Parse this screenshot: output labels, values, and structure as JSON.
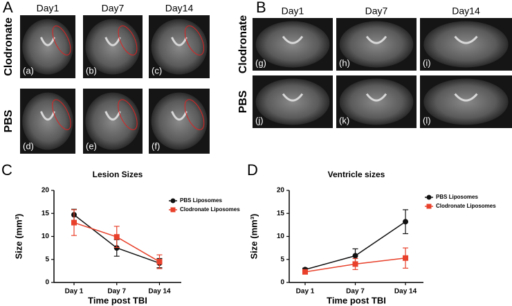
{
  "panels": {
    "A": {
      "letter": "A",
      "columns": [
        "Day1",
        "Day7",
        "Day14"
      ],
      "rows": [
        "Clodronate",
        "PBS"
      ],
      "images": [
        [
          "(a)",
          "(b)",
          "(c)"
        ],
        [
          "(d)",
          "(e)",
          "(f)"
        ]
      ]
    },
    "B": {
      "letter": "B",
      "columns": [
        "Day1",
        "Day7",
        "Day14"
      ],
      "rows": [
        "Clodronate",
        "PBS"
      ],
      "images": [
        [
          "(g)",
          "(h)",
          "(i)"
        ],
        [
          "(j)",
          "(k)",
          "(l)"
        ]
      ]
    }
  },
  "chart_data": [
    {
      "type": "line",
      "letter": "C",
      "title": "Lesion Sizes",
      "x_label": "Time post TBI",
      "y_label": "Size (mm³)",
      "categories": [
        "Day 1",
        "Day 7",
        "Day 14"
      ],
      "ylim": [
        0,
        20
      ],
      "yticks": [
        0,
        5,
        10,
        15,
        20
      ],
      "series": [
        {
          "name": "PBS Liposomes",
          "color": "#111111",
          "marker": "circle",
          "values": [
            14.7,
            7.5,
            4.2
          ],
          "errors": [
            1.2,
            1.8,
            1.0
          ]
        },
        {
          "name": "Clodronate Liposomes",
          "color": "#e8402a",
          "marker": "square",
          "values": [
            13.0,
            9.9,
            4.5
          ],
          "errors": [
            2.8,
            2.3,
            1.5
          ]
        }
      ]
    },
    {
      "type": "line",
      "letter": "D",
      "title": "Ventricle sizes",
      "x_label": "Time post TBI",
      "y_label": "Size (mm³)",
      "categories": [
        "Day 1",
        "Day 7",
        "Day 14"
      ],
      "ylim": [
        0,
        20
      ],
      "yticks": [
        0,
        5,
        10,
        15,
        20
      ],
      "series": [
        {
          "name": "PBS Liposomes",
          "color": "#111111",
          "marker": "circle",
          "values": [
            2.8,
            5.8,
            13.2
          ],
          "errors": [
            0.3,
            1.5,
            2.6
          ]
        },
        {
          "name": "Clodronate Liposomes",
          "color": "#e8402a",
          "marker": "square",
          "values": [
            2.3,
            4.0,
            5.3
          ],
          "errors": [
            0.4,
            1.2,
            2.2
          ]
        }
      ]
    }
  ]
}
